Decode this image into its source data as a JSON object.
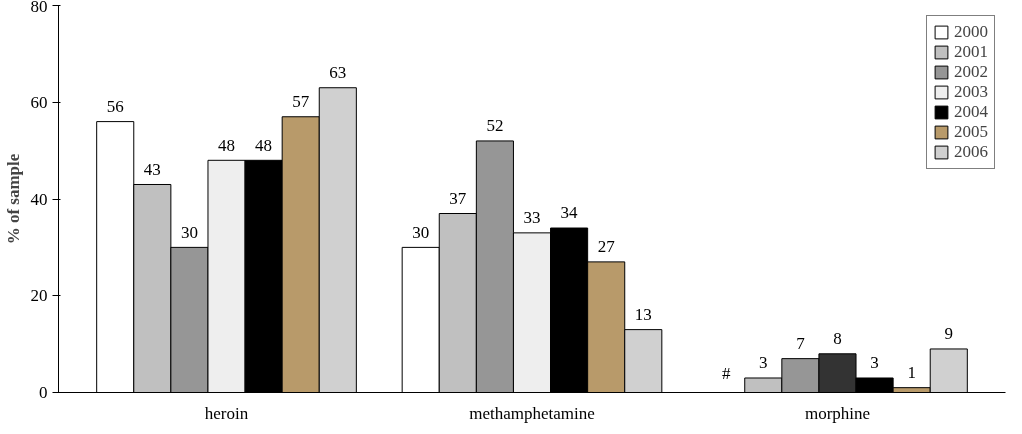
{
  "chart_data": {
    "type": "bar",
    "ylabel": "% of sample",
    "categories": [
      "heroin",
      "methamphetamine",
      "morphine"
    ],
    "ylim": [
      0,
      80
    ],
    "yticks": [
      0,
      20,
      40,
      60,
      80
    ],
    "grid": false,
    "legend": "top right",
    "series": [
      {
        "name": "2000",
        "color": "#ffffff",
        "values": [
          56,
          30,
          null
        ],
        "value_labels": [
          "56",
          "30",
          "#"
        ]
      },
      {
        "name": "2001",
        "color": "#c0c0c0",
        "values": [
          43,
          37,
          3
        ],
        "value_labels": [
          "43",
          "37",
          "3"
        ]
      },
      {
        "name": "2002",
        "color": "#969696",
        "values": [
          30,
          52,
          7
        ],
        "value_labels": [
          "30",
          "52",
          "7"
        ]
      },
      {
        "name": "2003",
        "color": "#eeeeee",
        "colors": [
          null,
          null,
          "#333333"
        ],
        "values": [
          48,
          33,
          8
        ],
        "value_labels": [
          "48",
          "33",
          "8"
        ]
      },
      {
        "name": "2004",
        "color": "#000000",
        "values": [
          48,
          34,
          3
        ],
        "value_labels": [
          "48",
          "34",
          "3"
        ]
      },
      {
        "name": "2005",
        "color": "#b89a6a",
        "values": [
          57,
          27,
          1
        ],
        "value_labels": [
          "57",
          "27",
          "1"
        ]
      },
      {
        "name": "2006",
        "color": "#d0d0d0",
        "values": [
          63,
          13,
          9
        ],
        "value_labels": [
          "63",
          "13",
          "9"
        ]
      }
    ]
  }
}
